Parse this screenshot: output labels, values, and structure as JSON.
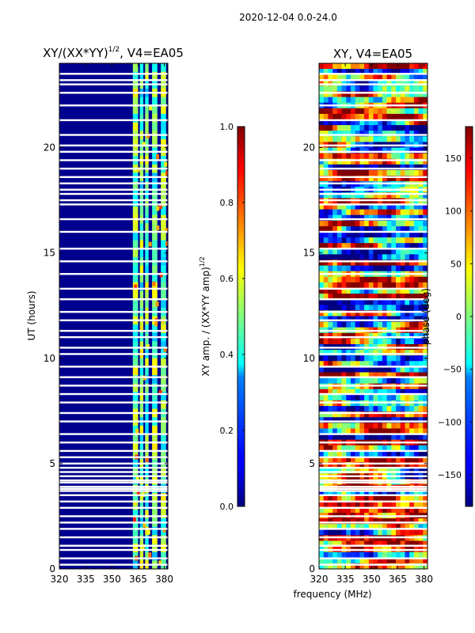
{
  "suptitle": "2020-12-04 0.0-24.0",
  "xlabel": "frequency (MHz)",
  "chart_data": [
    {
      "type": "heatmap",
      "title_main": "XY/(XX*YY)",
      "title_sup": "1/2",
      "title_tail": ", V4=EA05",
      "ylabel": "UT (hours)",
      "xlim": [
        320,
        382
      ],
      "ylim": [
        0,
        24
      ],
      "xticks": [
        320,
        335,
        350,
        365,
        380
      ],
      "yticks": [
        0,
        5,
        10,
        15,
        20
      ],
      "colorbar": {
        "label_main": "XY amp. / (XX*YY amp)",
        "label_sup": "1/2",
        "range": [
          0.0,
          1.0
        ],
        "ticks": [
          "0.0",
          "0.2",
          "0.4",
          "0.6",
          "0.8",
          "1.0"
        ],
        "tick_values": [
          0.0,
          0.2,
          0.4,
          0.6,
          0.8,
          1.0
        ],
        "colormap": "jet"
      },
      "bright_bands_mhz": [
        [
          362,
          365
        ],
        [
          366,
          368
        ],
        [
          369,
          371
        ],
        [
          373,
          376
        ],
        [
          378,
          381
        ]
      ]
    },
    {
      "type": "heatmap",
      "title": "XY, V4=EA05",
      "xlim": [
        320,
        382
      ],
      "ylim": [
        0,
        24
      ],
      "xticks": [
        320,
        335,
        350,
        365,
        380
      ],
      "yticks": [
        0,
        5,
        10,
        15,
        20
      ],
      "colorbar": {
        "label": "phase (deg)",
        "range": [
          -180,
          180
        ],
        "ticks": [
          "150",
          "100",
          "50",
          "0",
          "−50",
          "−100",
          "−150"
        ],
        "tick_values": [
          150,
          100,
          50,
          0,
          -50,
          -100,
          -150
        ],
        "colormap": "jet"
      }
    }
  ],
  "flagged_gap_hours": [
    0.2,
    0.5,
    0.9,
    1.1,
    1.5,
    1.9,
    2.2,
    2.5,
    2.9,
    3.2,
    3.5,
    3.7,
    3.8,
    3.9,
    4.1,
    4.2,
    4.4,
    4.6,
    4.8,
    5.0,
    5.3,
    5.6,
    6.0,
    6.4,
    7.0,
    7.4,
    7.9,
    8.3,
    8.7,
    9.1,
    9.6,
    10.2,
    10.5,
    11.0,
    11.3,
    11.8,
    12.2,
    12.8,
    13.3,
    14.0,
    14.6,
    15.2,
    16.0,
    16.6,
    17.3,
    17.5,
    17.8,
    18.0,
    18.3,
    18.6,
    19.0,
    19.4,
    19.8,
    20.1,
    20.6,
    21.3,
    22.0,
    22.6,
    23.0,
    23.2,
    23.5
  ]
}
